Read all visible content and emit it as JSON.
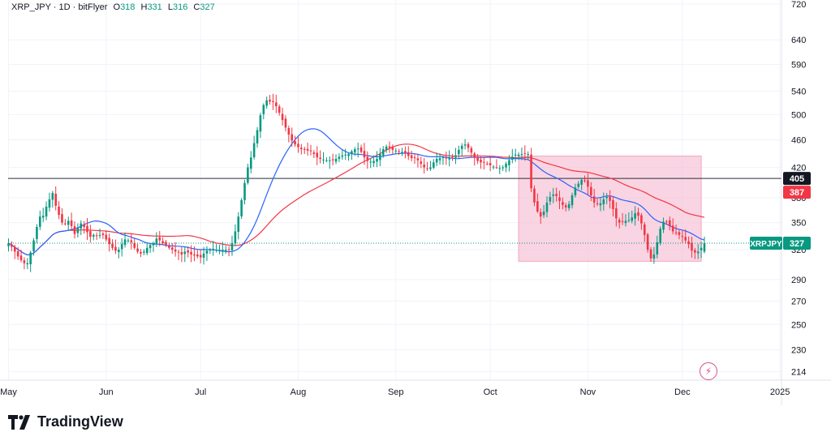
{
  "header": {
    "symbol": "XRP_JPY",
    "interval": "1D",
    "exchange": "bitFlyer",
    "ohlc": [
      {
        "key": "O",
        "value": "318"
      },
      {
        "key": "H",
        "value": "331"
      },
      {
        "key": "L",
        "value": "316"
      },
      {
        "key": "C",
        "value": "327"
      }
    ]
  },
  "brand": {
    "name": "TradingView"
  },
  "colors": {
    "up": "#089981",
    "down": "#f23645",
    "ma_fast": "#2962ff",
    "ma_slow": "#f23645",
    "zone": "#f7c6d8"
  },
  "chart_data": {
    "type": "candlestick",
    "title": "XRP_JPY · 1D · bitFlyer",
    "x_tick_labels": [
      "May",
      "Jun",
      "Jul",
      "Aug",
      "Sep",
      "Oct",
      "Nov",
      "Dec",
      "2025"
    ],
    "y_tick_labels": [
      214,
      230,
      250,
      270,
      290,
      320,
      350,
      380,
      420,
      460,
      500,
      540,
      590,
      640,
      720
    ],
    "y_scale": "log",
    "ylim": [
      208,
      730
    ],
    "horizontal_line": {
      "value": 405,
      "label": "405"
    },
    "price_labels": [
      {
        "value": 405,
        "text": "405",
        "style": "dark"
      },
      {
        "value": 387,
        "text": "387",
        "style": "red"
      },
      {
        "value": 327,
        "text": "327",
        "symbol": "XRPJPY",
        "style": "green"
      }
    ],
    "last_price": 327,
    "zone": {
      "start_day": 162,
      "end_day": 220,
      "top": 436,
      "bottom": 308
    },
    "series": [
      {
        "name": "XRPJPY",
        "type": "candles",
        "closes": [
          327,
          323,
          318,
          313,
          309,
          306,
          306,
          317,
          330,
          345,
          357,
          358,
          369,
          378,
          386,
          370,
          359,
          350,
          349,
          352,
          346,
          337,
          344,
          349,
          345,
          339,
          334,
          336,
          335,
          336,
          336,
          331,
          326,
          322,
          319,
          320,
          326,
          331,
          330,
          328,
          322,
          318,
          316,
          318,
          322,
          325,
          327,
          332,
          330,
          327,
          325,
          322,
          320,
          318,
          317,
          315,
          318,
          317,
          315,
          314,
          313,
          312,
          316,
          319,
          320,
          321,
          320,
          320,
          320,
          320,
          320,
          327,
          340,
          357,
          377,
          399,
          420,
          434,
          455,
          475,
          499,
          516,
          524,
          522,
          521,
          514,
          503,
          491,
          479,
          468,
          459,
          453,
          449,
          446,
          445,
          444,
          443,
          439,
          434,
          432,
          431,
          430,
          430,
          430,
          432,
          435,
          437,
          438,
          439,
          443,
          446,
          447,
          442,
          434,
          429,
          428,
          429,
          432,
          439,
          446,
          450,
          448,
          445,
          444,
          443,
          442,
          440,
          436,
          433,
          433,
          430,
          425,
          420,
          418,
          420,
          427,
          432,
          433,
          434,
          433,
          433,
          434,
          437,
          445,
          451,
          453,
          448,
          441,
          434,
          429,
          427,
          427,
          425,
          423,
          421,
          420,
          419,
          420,
          425,
          430,
          435,
          438,
          438,
          439,
          440,
          439,
          392,
          374,
          363,
          357,
          363,
          374,
          381,
          384,
          382,
          376,
          371,
          368,
          372,
          383,
          393,
          398,
          403,
          402,
          394,
          383,
          374,
          372,
          373,
          378,
          381,
          376,
          366,
          355,
          350,
          351,
          352,
          353,
          356,
          361,
          358,
          349,
          336,
          320,
          311,
          315,
          328,
          343,
          351,
          351,
          346,
          340,
          338,
          336,
          334,
          330,
          326,
          319,
          317,
          318,
          322,
          327
        ]
      },
      {
        "name": "MA fast",
        "type": "line",
        "color": "#2962ff"
      },
      {
        "name": "MA slow",
        "type": "line",
        "color": "#f23645"
      }
    ]
  }
}
